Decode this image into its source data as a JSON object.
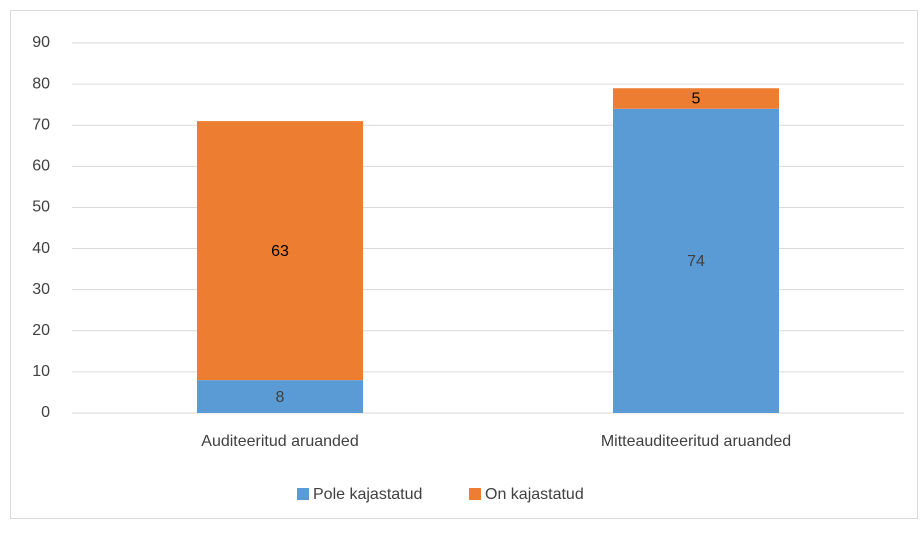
{
  "chart_data": {
    "type": "stacked_bar",
    "categories": [
      "Auditeeritud aruanded",
      "Mitteauditeeritud aruanded"
    ],
    "series": [
      {
        "name": "Pole kajastatud",
        "color": "#5b9bd5",
        "values": [
          8,
          74
        ]
      },
      {
        "name": "On kajastatud",
        "color": "#ed7d31",
        "values": [
          63,
          5
        ]
      }
    ],
    "ylim": [
      0,
      90
    ],
    "yticks": [
      0,
      10,
      20,
      30,
      40,
      50,
      60,
      70,
      80,
      90
    ],
    "grid": true,
    "legend": "bottom"
  }
}
